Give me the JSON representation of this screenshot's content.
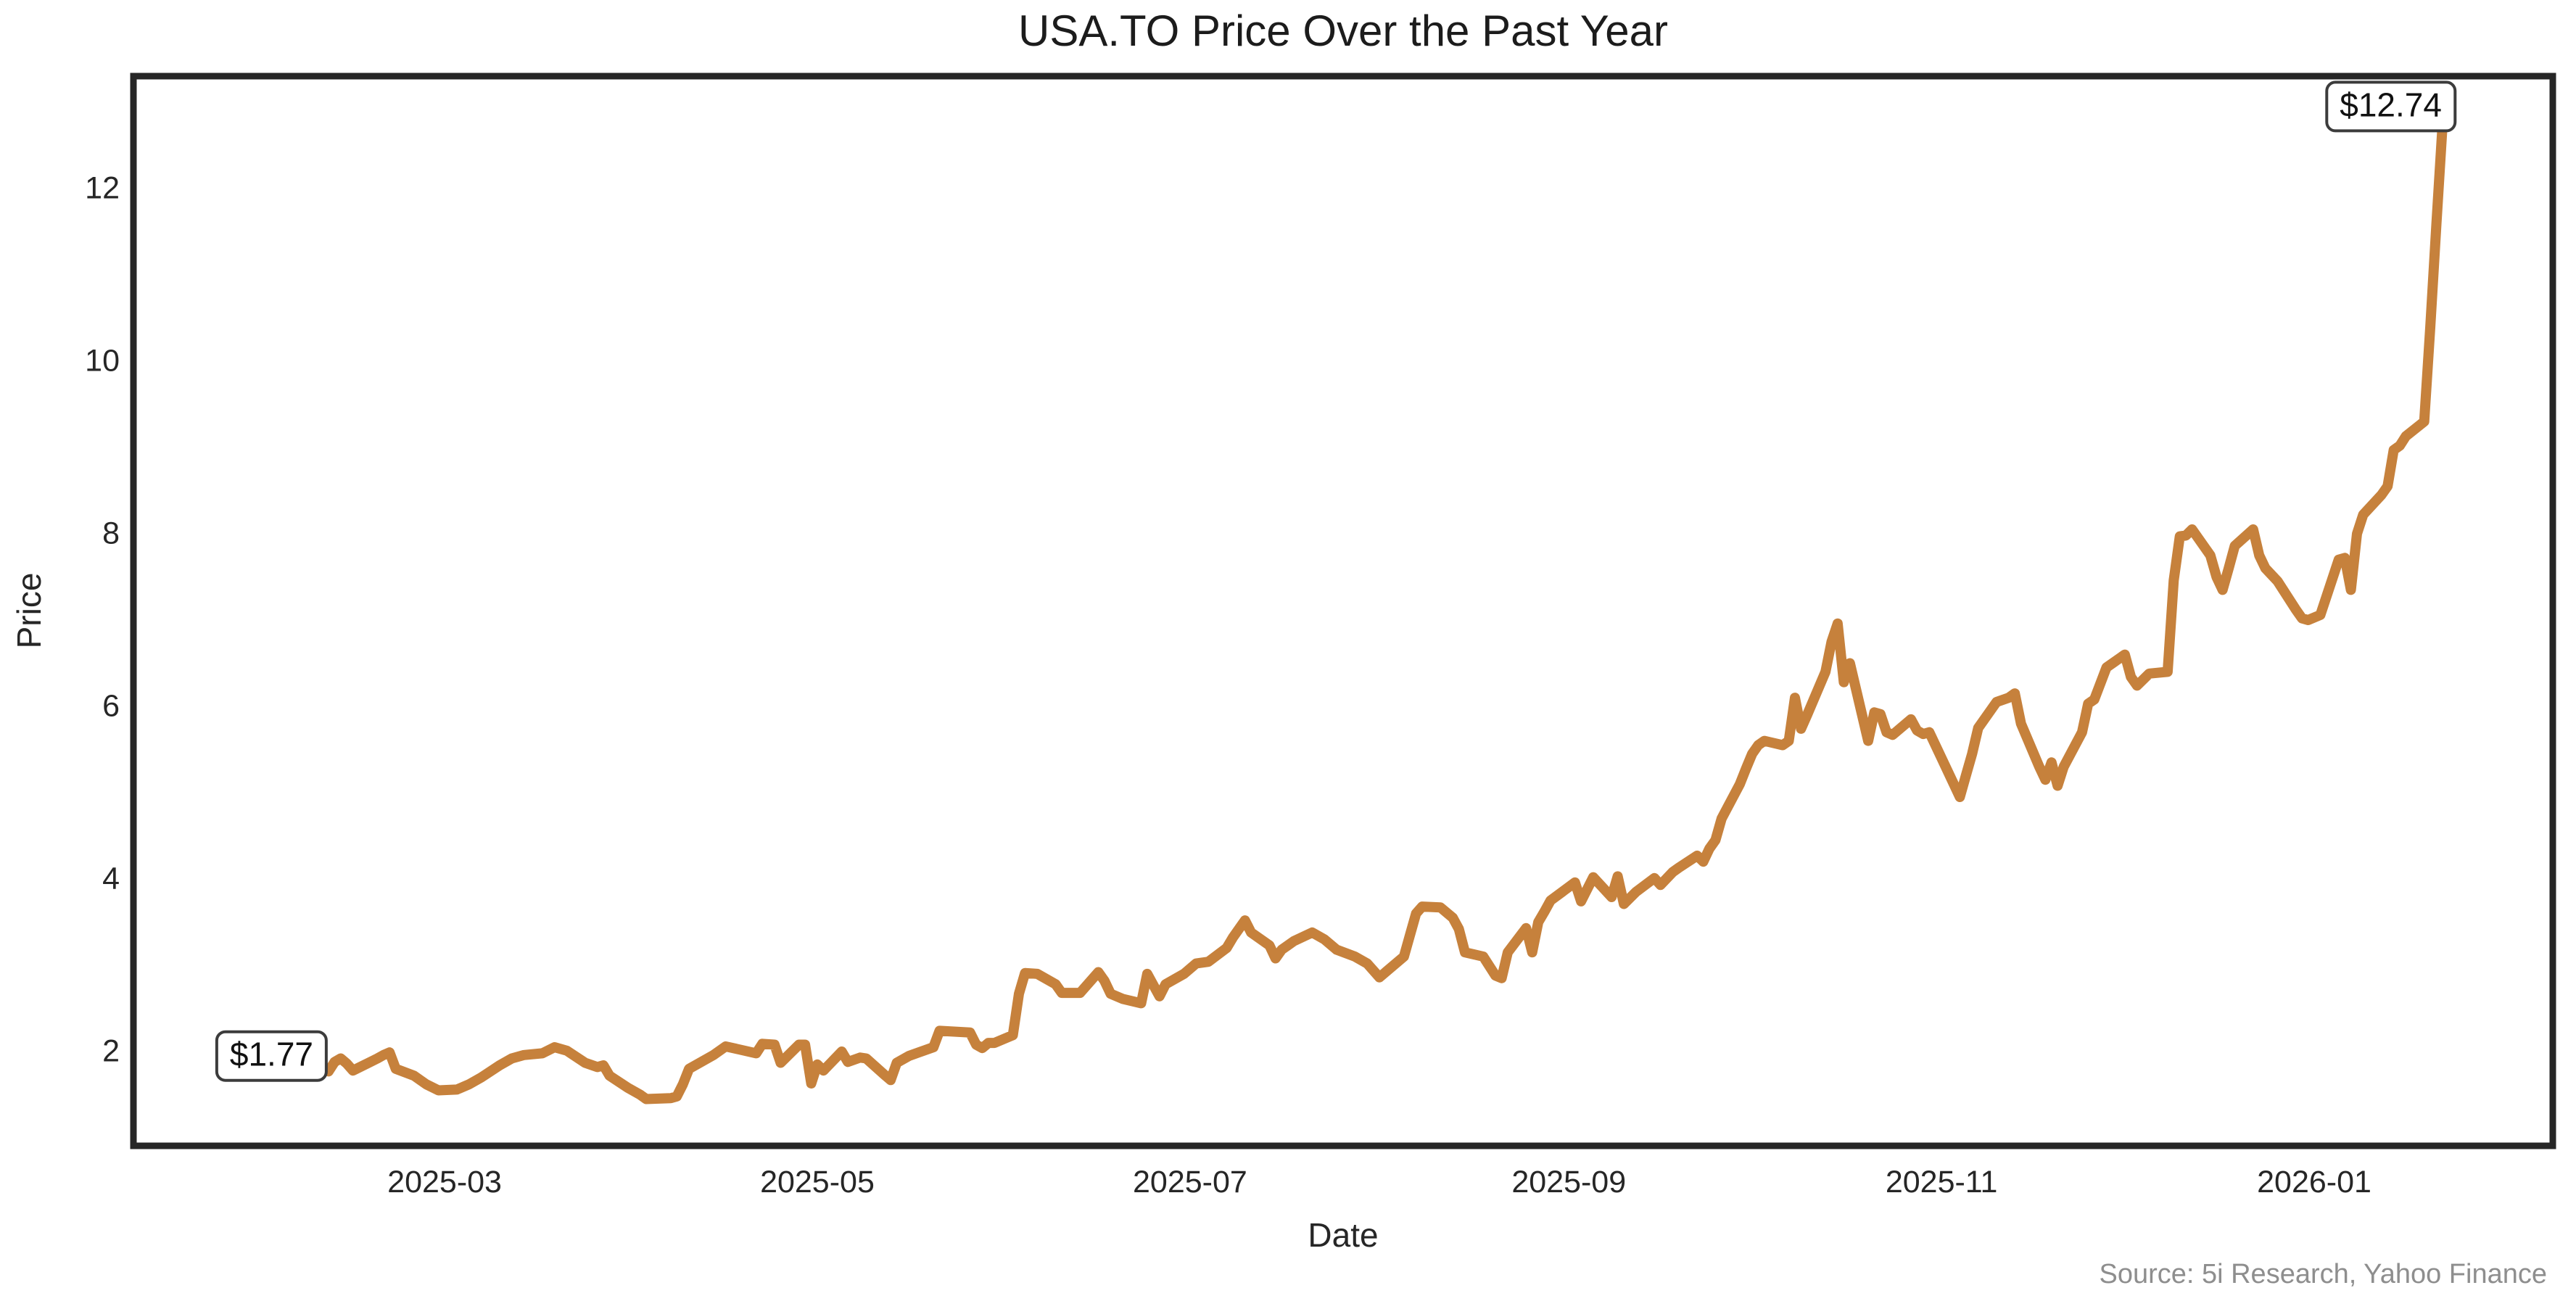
{
  "chart_data": {
    "type": "line",
    "title": "USA.TO Price Over the Past Year",
    "xlabel": "Date",
    "ylabel": "Price",
    "source": "Source: 5i Research, Yahoo Finance",
    "legend": "none",
    "grid": false,
    "ylim": [
      0.9,
      13.3
    ],
    "xlim": [
      "2025-01-09",
      "2026-02-09"
    ],
    "y_ticks": [
      2,
      4,
      6,
      8,
      10,
      12
    ],
    "x_ticks": [
      {
        "label": "2025-03",
        "date": "2025-03-01"
      },
      {
        "label": "2025-05",
        "date": "2025-05-01"
      },
      {
        "label": "2025-07",
        "date": "2025-07-01"
      },
      {
        "label": "2025-09",
        "date": "2025-09-01"
      },
      {
        "label": "2025-11",
        "date": "2025-11-01"
      },
      {
        "label": "2026-01",
        "date": "2026-01-01"
      }
    ],
    "annotations": [
      {
        "label": "$1.77",
        "date": "2025-02-10",
        "value": 1.77,
        "placement": "left-of-point"
      },
      {
        "label": "$12.74",
        "date": "2026-01-22",
        "value": 12.74,
        "placement": "above-left-of-point"
      }
    ],
    "colors": {
      "line": "#C6813C",
      "frame": "#262626",
      "text": "#262626",
      "title_text": "#1c1c1c",
      "source_text": "#8e8e8e",
      "annotation_border": "#3c3c3c",
      "background": "#ffffff"
    },
    "series": [
      {
        "name": "USA.TO",
        "color": "#C6813C",
        "points": [
          [
            "2025-02-10",
            1.77
          ],
          [
            "2025-02-11",
            1.88
          ],
          [
            "2025-02-12",
            1.92
          ],
          [
            "2025-02-13",
            1.86
          ],
          [
            "2025-02-14",
            1.78
          ],
          [
            "2025-02-18",
            1.92
          ],
          [
            "2025-02-19",
            1.96
          ],
          [
            "2025-02-20",
            1.99
          ],
          [
            "2025-02-21",
            1.8
          ],
          [
            "2025-02-24",
            1.72
          ],
          [
            "2025-02-25",
            1.67
          ],
          [
            "2025-02-26",
            1.62
          ],
          [
            "2025-02-28",
            1.55
          ],
          [
            "2025-03-03",
            1.56
          ],
          [
            "2025-03-05",
            1.62
          ],
          [
            "2025-03-07",
            1.7
          ],
          [
            "2025-03-10",
            1.84
          ],
          [
            "2025-03-12",
            1.92
          ],
          [
            "2025-03-14",
            1.96
          ],
          [
            "2025-03-17",
            1.98
          ],
          [
            "2025-03-19",
            2.05
          ],
          [
            "2025-03-21",
            2.01
          ],
          [
            "2025-03-24",
            1.87
          ],
          [
            "2025-03-26",
            1.82
          ],
          [
            "2025-03-27",
            1.84
          ],
          [
            "2025-03-28",
            1.72
          ],
          [
            "2025-03-31",
            1.58
          ],
          [
            "2025-04-02",
            1.5
          ],
          [
            "2025-04-03",
            1.45
          ],
          [
            "2025-04-07",
            1.46
          ],
          [
            "2025-04-08",
            1.48
          ],
          [
            "2025-04-09",
            1.62
          ],
          [
            "2025-04-10",
            1.8
          ],
          [
            "2025-04-14",
            1.96
          ],
          [
            "2025-04-16",
            2.06
          ],
          [
            "2025-04-21",
            1.98
          ],
          [
            "2025-04-22",
            2.09
          ],
          [
            "2025-04-24",
            2.08
          ],
          [
            "2025-04-25",
            1.87
          ],
          [
            "2025-04-28",
            2.08
          ],
          [
            "2025-04-29",
            2.08
          ],
          [
            "2025-04-30",
            1.63
          ],
          [
            "2025-05-01",
            1.85
          ],
          [
            "2025-05-02",
            1.78
          ],
          [
            "2025-05-05",
            2.0
          ],
          [
            "2025-05-06",
            1.88
          ],
          [
            "2025-05-08",
            1.93
          ],
          [
            "2025-05-09",
            1.92
          ],
          [
            "2025-05-12",
            1.73
          ],
          [
            "2025-05-13",
            1.67
          ],
          [
            "2025-05-14",
            1.87
          ],
          [
            "2025-05-16",
            1.95
          ],
          [
            "2025-05-20",
            2.05
          ],
          [
            "2025-05-21",
            2.24
          ],
          [
            "2025-05-26",
            2.22
          ],
          [
            "2025-05-27",
            2.08
          ],
          [
            "2025-05-28",
            2.04
          ],
          [
            "2025-05-29",
            2.1
          ],
          [
            "2025-05-30",
            2.1
          ],
          [
            "2025-06-02",
            2.19
          ],
          [
            "2025-06-03",
            2.67
          ],
          [
            "2025-06-04",
            2.91
          ],
          [
            "2025-06-06",
            2.9
          ],
          [
            "2025-06-09",
            2.78
          ],
          [
            "2025-06-10",
            2.68
          ],
          [
            "2025-06-13",
            2.68
          ],
          [
            "2025-06-16",
            2.92
          ],
          [
            "2025-06-17",
            2.82
          ],
          [
            "2025-06-18",
            2.67
          ],
          [
            "2025-06-20",
            2.61
          ],
          [
            "2025-06-23",
            2.56
          ],
          [
            "2025-06-24",
            2.9
          ],
          [
            "2025-06-26",
            2.64
          ],
          [
            "2025-06-27",
            2.78
          ],
          [
            "2025-06-30",
            2.9
          ],
          [
            "2025-07-02",
            3.02
          ],
          [
            "2025-07-04",
            3.04
          ],
          [
            "2025-07-07",
            3.2
          ],
          [
            "2025-07-08",
            3.32
          ],
          [
            "2025-07-10",
            3.52
          ],
          [
            "2025-07-11",
            3.38
          ],
          [
            "2025-07-14",
            3.23
          ],
          [
            "2025-07-15",
            3.08
          ],
          [
            "2025-07-16",
            3.18
          ],
          [
            "2025-07-18",
            3.28
          ],
          [
            "2025-07-21",
            3.38
          ],
          [
            "2025-07-23",
            3.3
          ],
          [
            "2025-07-25",
            3.18
          ],
          [
            "2025-07-28",
            3.1
          ],
          [
            "2025-07-30",
            3.02
          ],
          [
            "2025-08-01",
            2.86
          ],
          [
            "2025-08-05",
            3.1
          ],
          [
            "2025-08-06",
            3.35
          ],
          [
            "2025-08-07",
            3.6
          ],
          [
            "2025-08-08",
            3.68
          ],
          [
            "2025-08-11",
            3.67
          ],
          [
            "2025-08-13",
            3.55
          ],
          [
            "2025-08-14",
            3.42
          ],
          [
            "2025-08-15",
            3.15
          ],
          [
            "2025-08-18",
            3.1
          ],
          [
            "2025-08-20",
            2.88
          ],
          [
            "2025-08-21",
            2.85
          ],
          [
            "2025-08-22",
            3.15
          ],
          [
            "2025-08-25",
            3.43
          ],
          [
            "2025-08-26",
            3.15
          ],
          [
            "2025-08-27",
            3.5
          ],
          [
            "2025-08-28",
            3.62
          ],
          [
            "2025-08-29",
            3.75
          ],
          [
            "2025-09-02",
            3.96
          ],
          [
            "2025-09-03",
            3.74
          ],
          [
            "2025-09-05",
            4.02
          ],
          [
            "2025-09-08",
            3.79
          ],
          [
            "2025-09-09",
            4.03
          ],
          [
            "2025-09-10",
            3.71
          ],
          [
            "2025-09-12",
            3.85
          ],
          [
            "2025-09-15",
            4.01
          ],
          [
            "2025-09-16",
            3.93
          ],
          [
            "2025-09-18",
            4.08
          ],
          [
            "2025-09-19",
            4.13
          ],
          [
            "2025-09-22",
            4.27
          ],
          [
            "2025-09-23",
            4.2
          ],
          [
            "2025-09-24",
            4.35
          ],
          [
            "2025-09-25",
            4.45
          ],
          [
            "2025-09-26",
            4.7
          ],
          [
            "2025-09-29",
            5.1
          ],
          [
            "2025-09-30",
            5.28
          ],
          [
            "2025-10-01",
            5.45
          ],
          [
            "2025-10-02",
            5.55
          ],
          [
            "2025-10-03",
            5.6
          ],
          [
            "2025-10-06",
            5.55
          ],
          [
            "2025-10-07",
            5.6
          ],
          [
            "2025-10-08",
            6.1
          ],
          [
            "2025-10-09",
            5.74
          ],
          [
            "2025-10-10",
            5.9
          ],
          [
            "2025-10-13",
            6.4
          ],
          [
            "2025-10-14",
            6.75
          ],
          [
            "2025-10-15",
            6.96
          ],
          [
            "2025-10-16",
            6.28
          ],
          [
            "2025-10-17",
            6.5
          ],
          [
            "2025-10-20",
            5.6
          ],
          [
            "2025-10-21",
            5.93
          ],
          [
            "2025-10-22",
            5.91
          ],
          [
            "2025-10-23",
            5.7
          ],
          [
            "2025-10-24",
            5.67
          ],
          [
            "2025-10-27",
            5.85
          ],
          [
            "2025-10-28",
            5.72
          ],
          [
            "2025-10-29",
            5.68
          ],
          [
            "2025-10-30",
            5.7
          ],
          [
            "2025-10-31",
            5.55
          ],
          [
            "2025-11-03",
            5.1
          ],
          [
            "2025-11-04",
            4.95
          ],
          [
            "2025-11-05",
            5.2
          ],
          [
            "2025-11-06",
            5.45
          ],
          [
            "2025-11-07",
            5.75
          ],
          [
            "2025-11-10",
            6.05
          ],
          [
            "2025-11-12",
            6.1
          ],
          [
            "2025-11-13",
            6.15
          ],
          [
            "2025-11-14",
            5.8
          ],
          [
            "2025-11-17",
            5.3
          ],
          [
            "2025-11-18",
            5.15
          ],
          [
            "2025-11-19",
            5.35
          ],
          [
            "2025-11-20",
            5.08
          ],
          [
            "2025-11-21",
            5.3
          ],
          [
            "2025-11-24",
            5.7
          ],
          [
            "2025-11-25",
            6.03
          ],
          [
            "2025-11-26",
            6.08
          ],
          [
            "2025-11-28",
            6.45
          ],
          [
            "2025-12-01",
            6.6
          ],
          [
            "2025-12-02",
            6.34
          ],
          [
            "2025-12-03",
            6.24
          ],
          [
            "2025-12-05",
            6.38
          ],
          [
            "2025-12-08",
            6.4
          ],
          [
            "2025-12-09",
            7.46
          ],
          [
            "2025-12-10",
            7.97
          ],
          [
            "2025-12-11",
            7.98
          ],
          [
            "2025-12-12",
            8.05
          ],
          [
            "2025-12-15",
            7.75
          ],
          [
            "2025-12-16",
            7.5
          ],
          [
            "2025-12-17",
            7.35
          ],
          [
            "2025-12-18",
            7.6
          ],
          [
            "2025-12-19",
            7.86
          ],
          [
            "2025-12-22",
            8.05
          ],
          [
            "2025-12-23",
            7.75
          ],
          [
            "2025-12-24",
            7.6
          ],
          [
            "2025-12-26",
            7.45
          ],
          [
            "2025-12-29",
            7.12
          ],
          [
            "2025-12-30",
            7.02
          ],
          [
            "2025-12-31",
            7.0
          ],
          [
            "2026-01-02",
            7.06
          ],
          [
            "2026-01-05",
            7.7
          ],
          [
            "2026-01-06",
            7.72
          ],
          [
            "2026-01-07",
            7.35
          ],
          [
            "2026-01-08",
            8.0
          ],
          [
            "2026-01-09",
            8.22
          ],
          [
            "2026-01-12",
            8.45
          ],
          [
            "2026-01-13",
            8.55
          ],
          [
            "2026-01-14",
            8.97
          ],
          [
            "2026-01-15",
            9.02
          ],
          [
            "2026-01-16",
            9.13
          ],
          [
            "2026-01-19",
            9.3
          ],
          [
            "2026-01-20",
            10.4
          ],
          [
            "2026-01-21",
            11.6
          ],
          [
            "2026-01-22",
            12.74
          ]
        ]
      }
    ]
  }
}
